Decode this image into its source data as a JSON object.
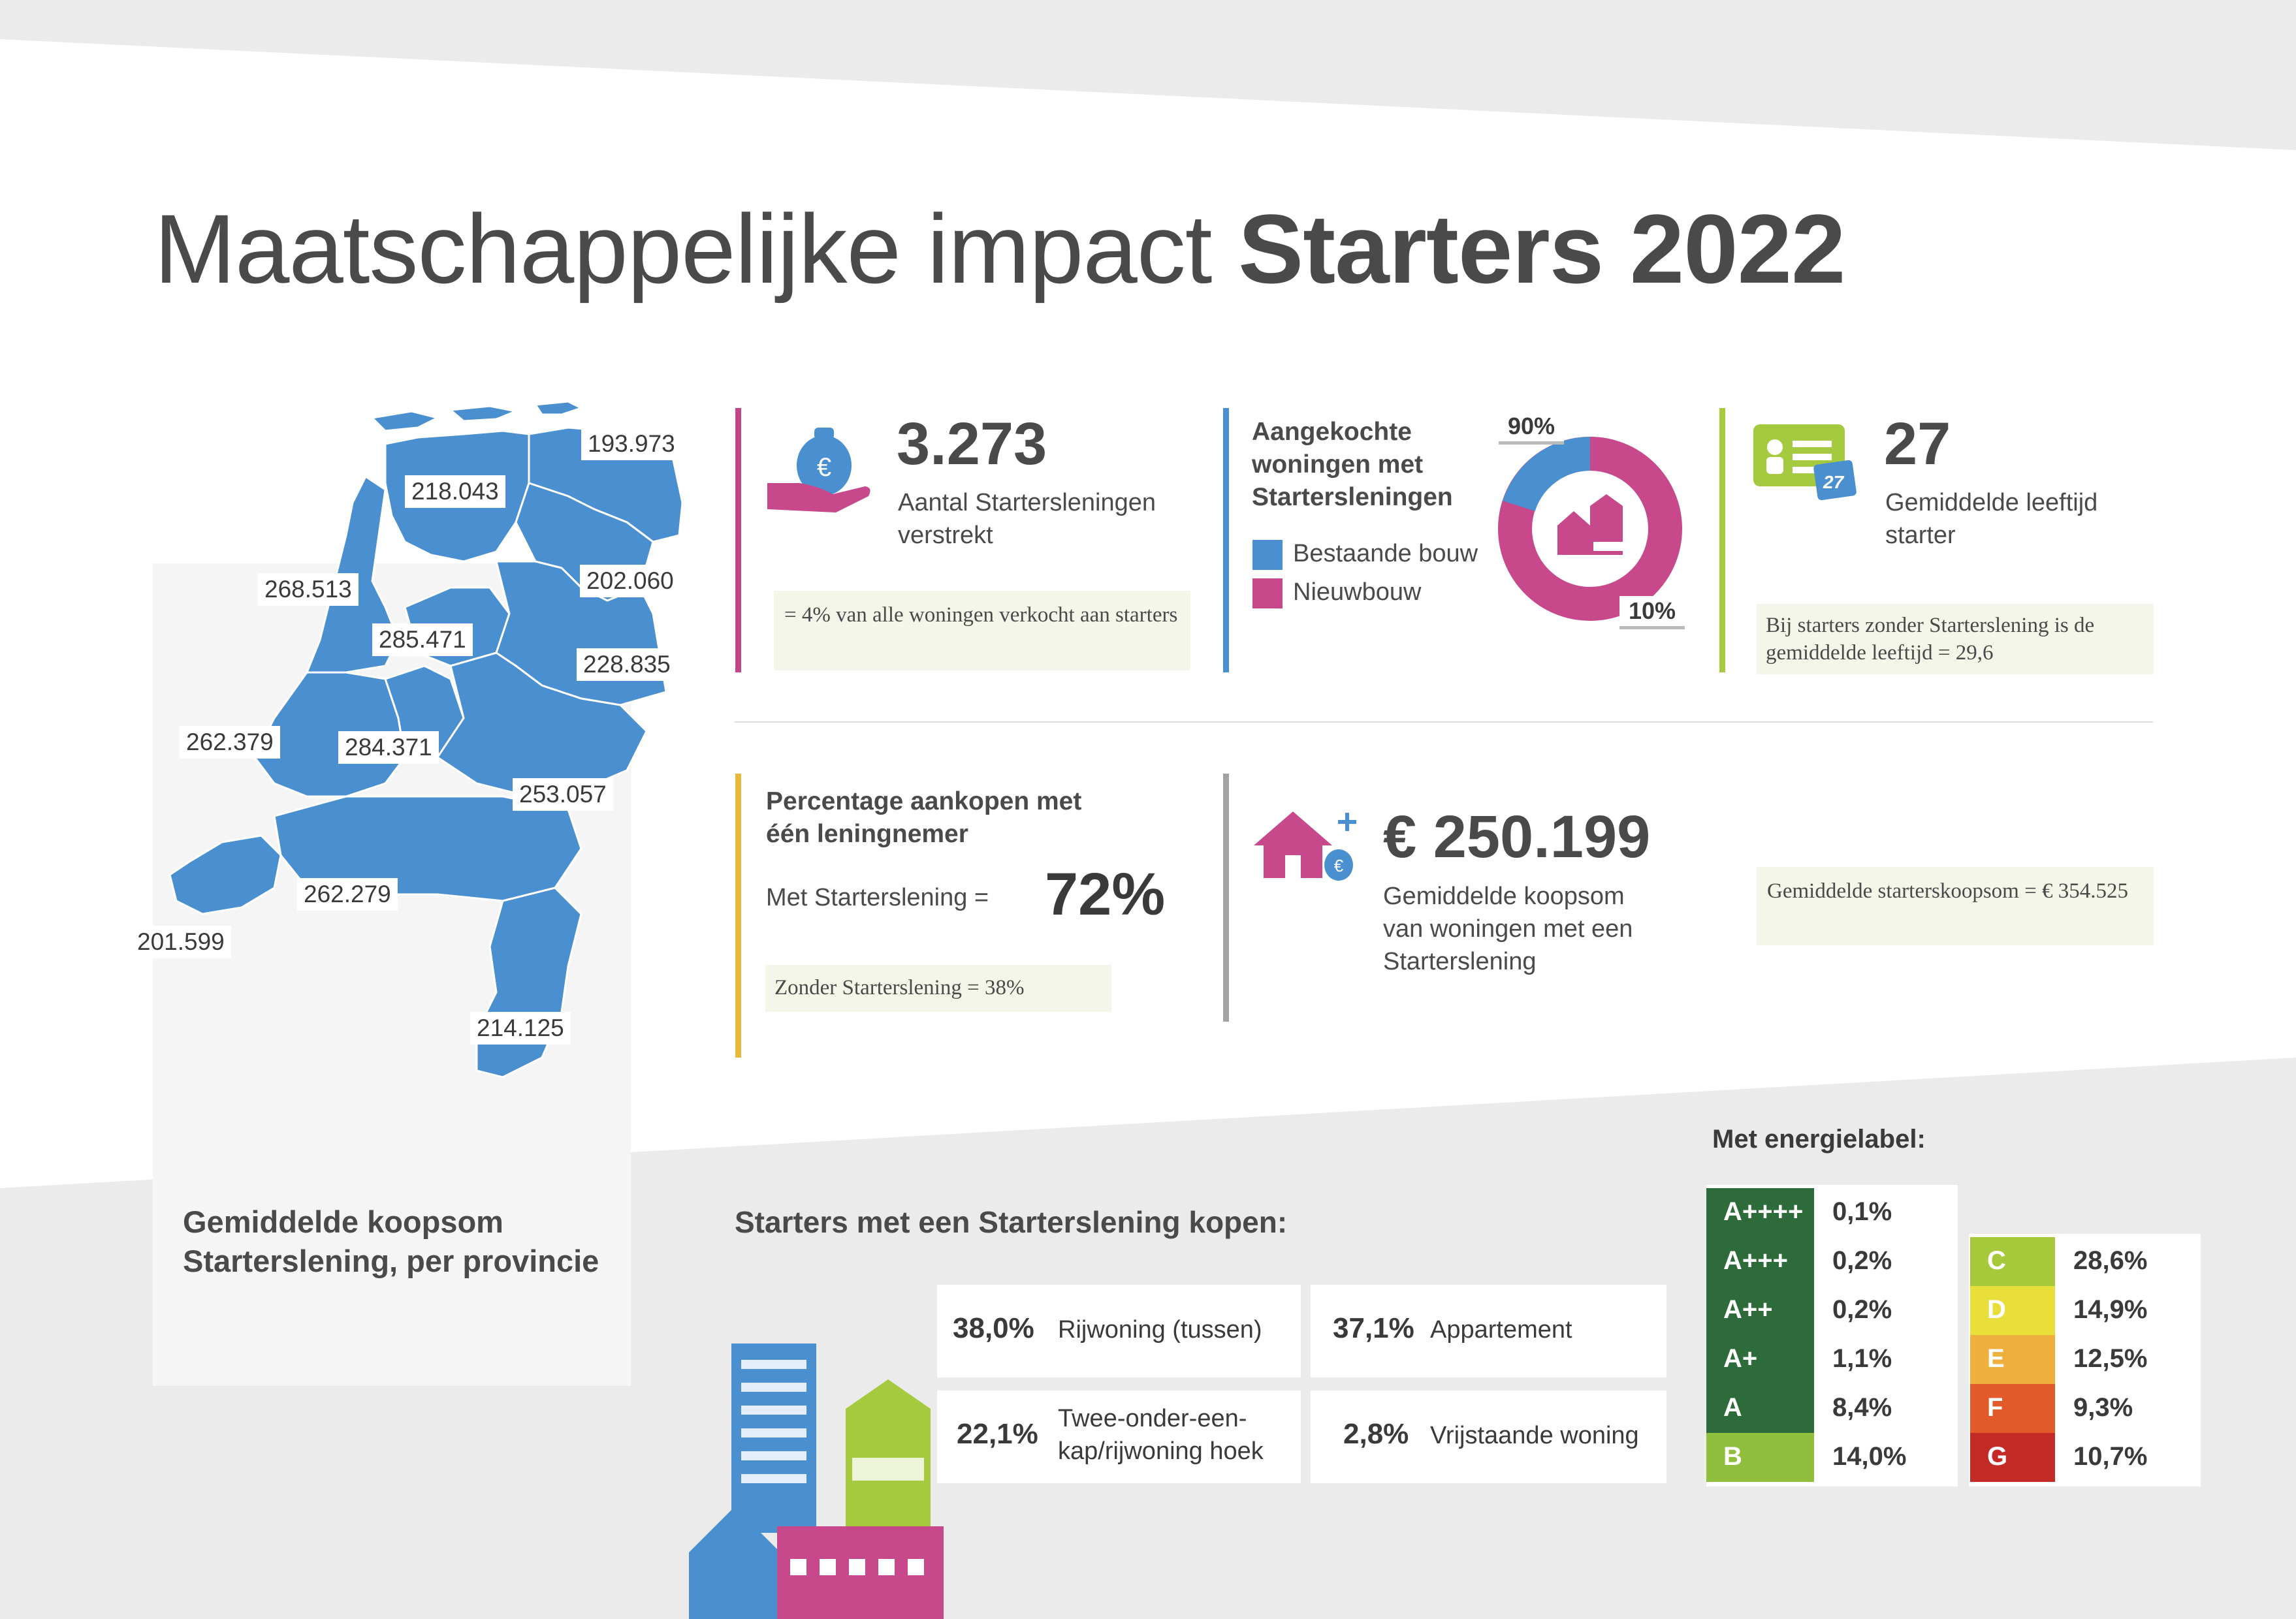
{
  "title": {
    "light": "Maatschappelijke impact",
    "bold": "Starters 2022"
  },
  "map": {
    "caption": "Gemiddelde koopsom Starterslening, per provincie",
    "provinces": [
      {
        "value": "193.973"
      },
      {
        "value": "218.043"
      },
      {
        "value": "268.513"
      },
      {
        "value": "202.060"
      },
      {
        "value": "285.471"
      },
      {
        "value": "228.835"
      },
      {
        "value": "262.379"
      },
      {
        "value": "284.371"
      },
      {
        "value": "253.057"
      },
      {
        "value": "262.279"
      },
      {
        "value": "201.599"
      },
      {
        "value": "214.125"
      }
    ]
  },
  "loans": {
    "number": "3.273",
    "label": "Aantal Startersleningen verstrekt",
    "note": "= 4% van alle woningen verkocht aan starters",
    "icon": "money-bag-hand-icon",
    "accent": "#c0458a"
  },
  "homes": {
    "heading": "Aangekochte woningen met Startersleningen",
    "legend": [
      {
        "label": "Bestaande bouw",
        "color": "#4a90d0"
      },
      {
        "label": "Nieuwbouw",
        "color": "#c7488b"
      }
    ],
    "donut_labels": {
      "existing": "90%",
      "new": "10%"
    },
    "accent": "#4a90d0"
  },
  "age": {
    "number": "27",
    "label": "Gemiddelde leeftijd starter",
    "note": "Bij starters zonder Starterslening is de gemiddelde leeftijd = 29,6",
    "badge": "27",
    "icon": "id-card-icon",
    "accent": "#a5c93f"
  },
  "borrower": {
    "heading": "Percentage aankopen met één leningnemer",
    "with_label": "Met Starterslening =",
    "with_value": "72%",
    "note": "Zonder Starterslening =  38%",
    "accent": "#e6b93a"
  },
  "price": {
    "number": "€ 250.199",
    "label": "Gemiddelde koopsom van woningen met een Starterslening",
    "note": "Gemiddelde starterskoopsom = € 354.525",
    "icon": "house-money-icon",
    "accent": "#a3a3a3"
  },
  "types": {
    "heading": "Starters met een Starterslening kopen:",
    "items": [
      {
        "pct": "38,0%",
        "label": "Rijwoning (tussen)"
      },
      {
        "pct": "37,1%",
        "label": "Appartement"
      },
      {
        "pct": "22,1%",
        "label": "Twee-onder-een-kap/rijwoning hoek"
      },
      {
        "pct": "2,8%",
        "label": "Vrijstaande woning"
      }
    ]
  },
  "energy": {
    "heading": "Met energielabel:",
    "left": [
      {
        "label": "A++++",
        "value": "0,1%",
        "color": "#2d6b3a"
      },
      {
        "label": "A+++",
        "value": "0,2%",
        "color": "#2d6b3a"
      },
      {
        "label": "A++",
        "value": "0,2%",
        "color": "#2d6b3a"
      },
      {
        "label": "A+",
        "value": "1,1%",
        "color": "#2d6b3a"
      },
      {
        "label": "A",
        "value": "8,4%",
        "color": "#2d6b3a"
      },
      {
        "label": "B",
        "value": "14,0%",
        "color": "#8fbf3d"
      }
    ],
    "right": [
      {
        "label": "C",
        "value": "28,6%",
        "color": "#a6c93c"
      },
      {
        "label": "D",
        "value": "14,9%",
        "color": "#e9df3b"
      },
      {
        "label": "E",
        "value": "12,5%",
        "color": "#eeaf3c"
      },
      {
        "label": "F",
        "value": "9,3%",
        "color": "#e35a2a"
      },
      {
        "label": "G",
        "value": "10,7%",
        "color": "#c42a26"
      }
    ]
  }
}
